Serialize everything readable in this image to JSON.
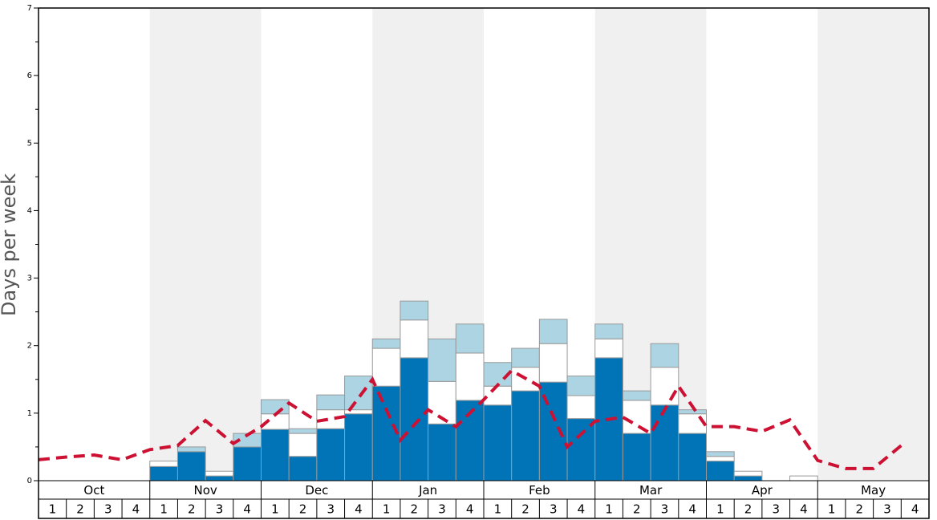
{
  "chart_data": {
    "type": "stacked-bar-line",
    "y_label": "Days per week",
    "groups": [
      "Oct",
      "Nov",
      "Dec",
      "Jan",
      "Feb",
      "Mar",
      "Apr",
      "May"
    ],
    "categories": [
      "1",
      "2",
      "3",
      "4",
      "1",
      "2",
      "3",
      "4",
      "1",
      "2",
      "3",
      "4",
      "1",
      "2",
      "3",
      "4",
      "1",
      "2",
      "3",
      "4",
      "1",
      "2",
      "3",
      "4",
      "1",
      "2",
      "3",
      "4",
      "1",
      "2",
      "3",
      "4"
    ],
    "series": [
      {
        "color": "#0074b7",
        "values": [
          0,
          0,
          0,
          0,
          0.21,
          0.43,
          0.07,
          0.5,
          0.76,
          0.36,
          0.77,
          0.99,
          1.4,
          1.82,
          0.84,
          1.19,
          1.12,
          1.33,
          1.46,
          0.92,
          1.82,
          0.7,
          1.12,
          0.7,
          0.29,
          0.07,
          0,
          0,
          0,
          0,
          0,
          0
        ]
      },
      {
        "color": "#ffffff",
        "values": [
          0,
          0,
          0,
          0,
          0.08,
          0,
          0.07,
          0,
          0.23,
          0.34,
          0.28,
          0.06,
          0.56,
          0.56,
          0.63,
          0.7,
          0.28,
          0.35,
          0.57,
          0.34,
          0.28,
          0.49,
          0.56,
          0.29,
          0.07,
          0.07,
          0,
          0.07,
          0,
          0,
          0,
          0
        ]
      },
      {
        "color": "#add4e3",
        "values": [
          0,
          0,
          0,
          0,
          0,
          0.07,
          0,
          0.2,
          0.21,
          0.07,
          0.22,
          0.5,
          0.14,
          0.28,
          0.63,
          0.43,
          0.35,
          0.28,
          0.36,
          0.29,
          0.22,
          0.14,
          0.35,
          0.06,
          0.07,
          0,
          0,
          0,
          0,
          0,
          0,
          0
        ]
      }
    ],
    "line": {
      "color": "#cc1133",
      "values": [
        0.31,
        0.35,
        0.38,
        0.31,
        0.46,
        0.52,
        0.89,
        0.55,
        0.8,
        1.15,
        0.88,
        0.95,
        1.5,
        0.6,
        1.05,
        0.8,
        1.2,
        1.63,
        1.4,
        0.5,
        0.88,
        0.94,
        0.7,
        1.4,
        0.8,
        0.8,
        0.73,
        0.9,
        0.3,
        0.18,
        0.18,
        0.52
      ]
    },
    "ylim": [
      0,
      7
    ],
    "yticks": [
      0,
      1,
      2,
      3,
      4,
      5,
      6,
      7
    ],
    "yminorticks": [
      0.5,
      1.5,
      2.5,
      3.5,
      4.5,
      5.5,
      6.5
    ],
    "band_color": "#f0f0f0"
  }
}
